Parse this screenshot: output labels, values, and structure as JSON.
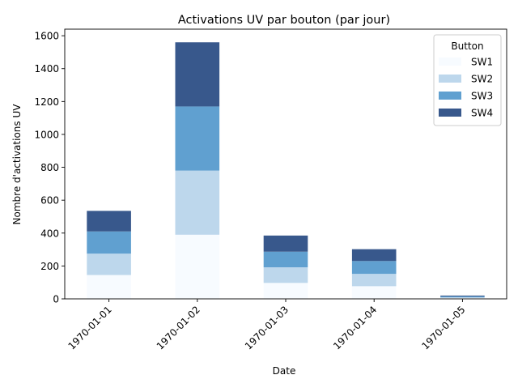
{
  "chart_data": {
    "type": "bar",
    "stacked": true,
    "title": "Activations UV par bouton (par jour)",
    "xlabel": "Date",
    "ylabel": "Nombre d'activations UV",
    "ylim": [
      0,
      1640
    ],
    "yticks": [
      0,
      200,
      400,
      600,
      800,
      1000,
      1200,
      1400,
      1600
    ],
    "categories": [
      "1970-01-01",
      "1970-01-02",
      "1970-01-03",
      "1970-01-04",
      "1970-01-05"
    ],
    "legend": {
      "title": "Button",
      "position": "top-right"
    },
    "series": [
      {
        "name": "SW1",
        "color": "#f7fbff",
        "values": [
          145,
          390,
          97,
          77,
          5
        ]
      },
      {
        "name": "SW2",
        "color": "#bdd7ec",
        "values": [
          130,
          390,
          95,
          75,
          5
        ]
      },
      {
        "name": "SW3",
        "color": "#60a0d0",
        "values": [
          135,
          390,
          95,
          78,
          5
        ]
      },
      {
        "name": "SW4",
        "color": "#38588c",
        "values": [
          125,
          390,
          98,
          72,
          5
        ]
      }
    ]
  }
}
